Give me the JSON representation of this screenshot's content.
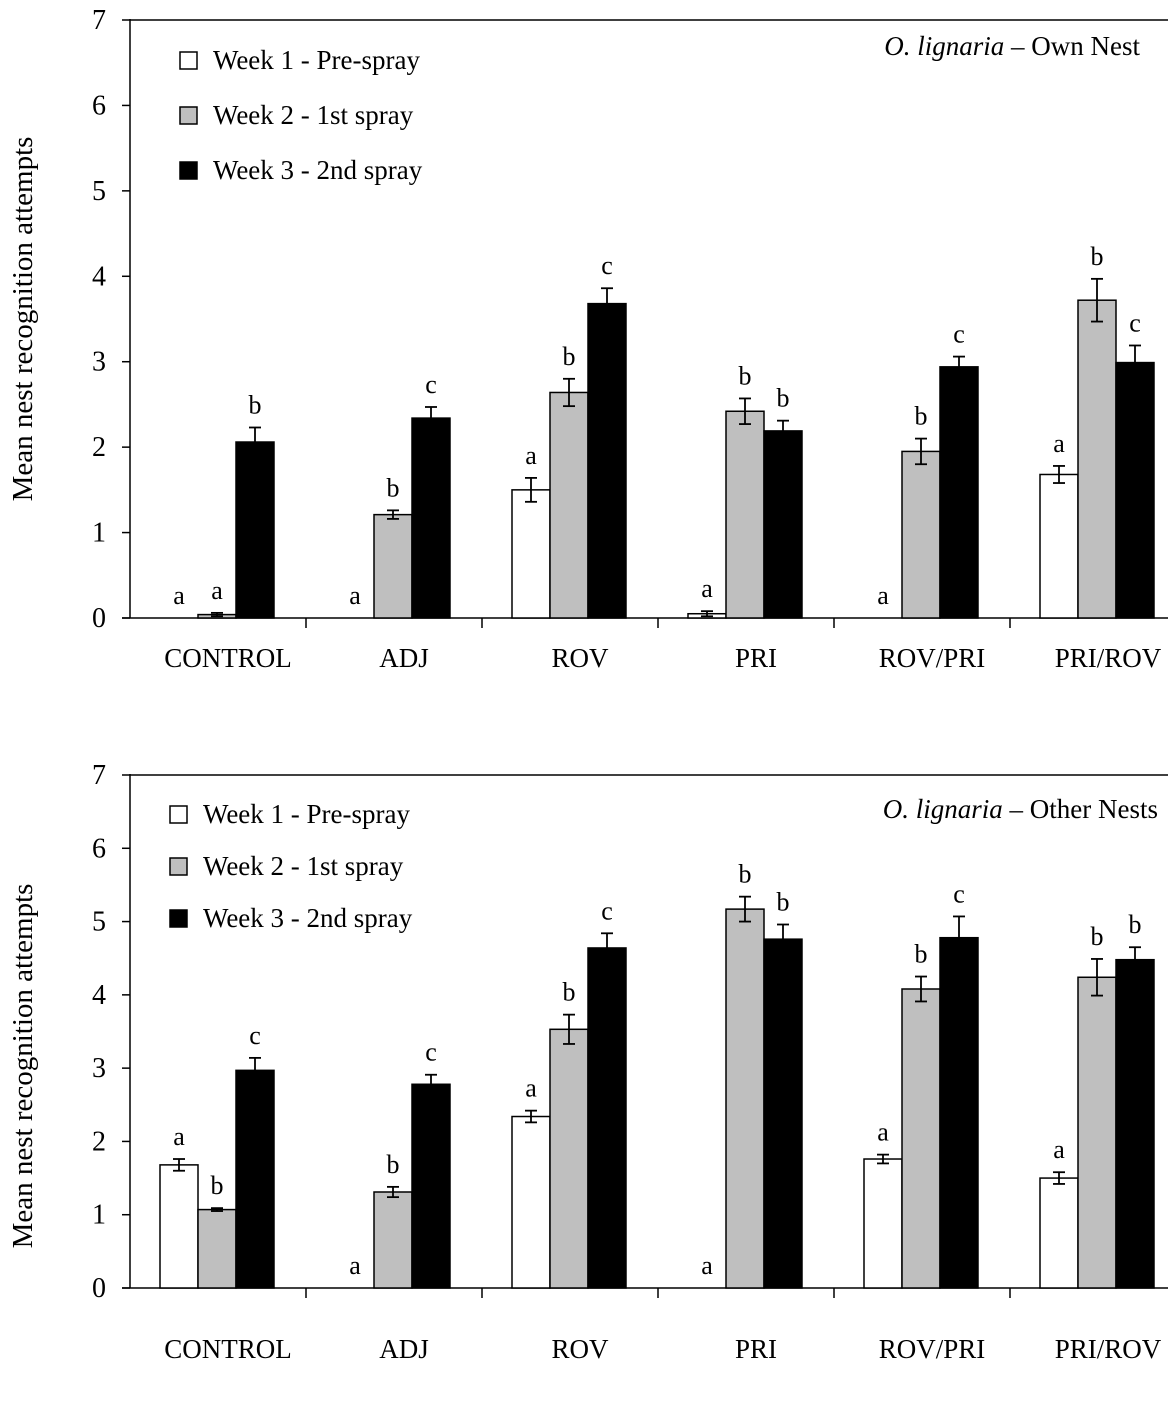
{
  "chart_data": [
    {
      "type": "bar",
      "annotation_italic": "O. lignaria",
      "annotation_rest": " – Own Nest",
      "ylabel": "Mean nest recognition attempts",
      "ylim": [
        0,
        7
      ],
      "yticks": [
        "0",
        "1",
        "2",
        "3",
        "4",
        "5",
        "6",
        "7"
      ],
      "categories": [
        "CONTROL",
        "ADJ",
        "ROV",
        "PRI",
        "ROV/PRI",
        "PRI/ROV"
      ],
      "legend_placement": "top-left",
      "series": [
        {
          "name": "Week 1 - Pre-spray",
          "color": "#ffffff",
          "values": [
            0,
            0,
            1.5,
            0.05,
            0,
            1.68
          ],
          "errors": [
            0,
            0,
            0.14,
            0.03,
            0,
            0.1
          ],
          "letters": [
            "a",
            "a",
            "a",
            "a",
            "a",
            "a"
          ]
        },
        {
          "name": "Week 2 - 1st spray",
          "color": "#bfbfbf",
          "values": [
            0.04,
            1.21,
            2.64,
            2.42,
            1.95,
            3.72
          ],
          "errors": [
            0.02,
            0.05,
            0.16,
            0.15,
            0.15,
            0.25
          ],
          "letters": [
            "a",
            "b",
            "b",
            "b",
            "b",
            "b"
          ]
        },
        {
          "name": "Week 3 - 2nd spray",
          "color": "#000000",
          "values": [
            2.06,
            2.34,
            3.68,
            2.19,
            2.94,
            2.99
          ],
          "errors": [
            0.17,
            0.13,
            0.18,
            0.12,
            0.12,
            0.2
          ],
          "letters": [
            "b",
            "c",
            "c",
            "b",
            "c",
            "c"
          ]
        }
      ]
    },
    {
      "type": "bar",
      "annotation_italic": "O. lignaria",
      "annotation_rest": " – Other Nests",
      "ylabel": "Mean nest recognition attempts",
      "ylim": [
        0,
        7
      ],
      "yticks": [
        "0",
        "1",
        "2",
        "3",
        "4",
        "5",
        "6",
        "7"
      ],
      "categories": [
        "CONTROL",
        "ADJ",
        "ROV",
        "PRI",
        "ROV/PRI",
        "PRI/ROV"
      ],
      "legend_placement": "top-left",
      "series": [
        {
          "name": "Week 1 - Pre-spray",
          "color": "#ffffff",
          "values": [
            1.68,
            0,
            2.34,
            0,
            1.76,
            1.5
          ],
          "errors": [
            0.08,
            0,
            0.08,
            0,
            0.06,
            0.08
          ],
          "letters": [
            "a",
            "a",
            "a",
            "a",
            "a",
            "a"
          ]
        },
        {
          "name": "Week 2 - 1st spray",
          "color": "#bfbfbf",
          "values": [
            1.07,
            1.31,
            3.53,
            5.17,
            4.08,
            4.24
          ],
          "errors": [
            0.02,
            0.07,
            0.2,
            0.17,
            0.17,
            0.25
          ],
          "letters": [
            "b",
            "b",
            "b",
            "b",
            "b",
            "b"
          ]
        },
        {
          "name": "Week 3 - 2nd spray",
          "color": "#000000",
          "values": [
            2.97,
            2.78,
            4.64,
            4.76,
            4.78,
            4.48
          ],
          "errors": [
            0.17,
            0.13,
            0.2,
            0.2,
            0.29,
            0.17
          ],
          "letters": [
            "c",
            "c",
            "c",
            "b",
            "c",
            "b"
          ]
        }
      ]
    }
  ]
}
